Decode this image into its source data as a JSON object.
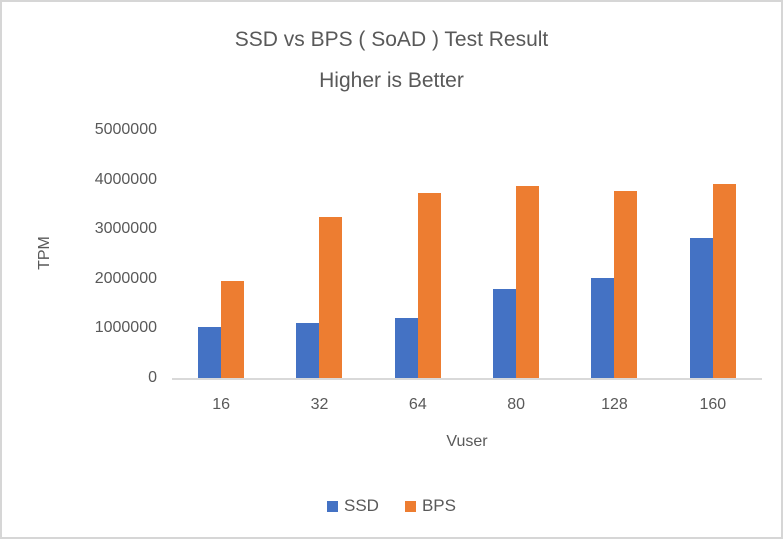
{
  "chart_data": {
    "type": "bar",
    "title": "SSD vs BPS ( SoAD ) Test Result",
    "subtitle": "Higher is Better",
    "xlabel": "Vuser",
    "ylabel": "TPM",
    "categories": [
      "16",
      "32",
      "64",
      "80",
      "128",
      "160"
    ],
    "series": [
      {
        "name": "SSD",
        "color": "#4472C4",
        "values": [
          1030000,
          1100000,
          1200000,
          1800000,
          2020000,
          2820000
        ]
      },
      {
        "name": "BPS",
        "color": "#ED7D31",
        "values": [
          1950000,
          3250000,
          3730000,
          3870000,
          3780000,
          3920000
        ]
      }
    ],
    "ylim": [
      0,
      5000000
    ],
    "ytick_step": 1000000,
    "yticks": [
      "0",
      "1000000",
      "2000000",
      "3000000",
      "4000000",
      "5000000"
    ],
    "grid": false,
    "legend_position": "bottom"
  },
  "colors": {
    "text": "#595959",
    "axis_line": "#D9D9D9",
    "canvas_border": "#D6D6D6",
    "background": "#FFFFFF"
  }
}
